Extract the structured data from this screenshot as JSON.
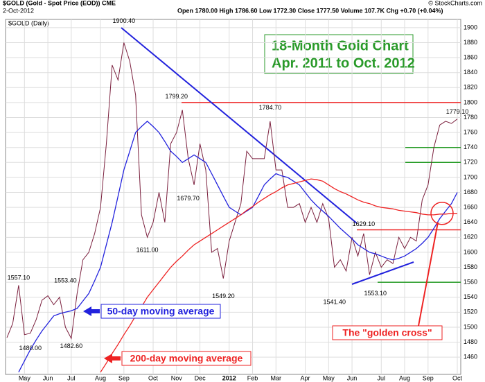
{
  "chart_data": {
    "type": "line",
    "symbol": "$GOLD (Gold - Spot Price (EOD)) CME",
    "date": "2-Oct-2012",
    "quote": "Open 1780.00  High 1786.60  Low 1772.30  Close 1777.50  Volume 107.7K  Chg +0.70 (+0.04%)",
    "credit": "© StockCharts.com",
    "panel_label": "$GOLD (Daily)",
    "title": "18-Month Gold Chart",
    "subtitle": "Apr. 2011 to Oct. 2012",
    "categories": [
      null,
      null,
      null,
      "May",
      null,
      null,
      null,
      "Jun",
      null,
      null,
      null,
      "Jul",
      null,
      null,
      null,
      null,
      "Aug",
      null,
      null,
      null,
      "Sep",
      null,
      null,
      null,
      null,
      "Oct",
      null,
      null,
      null,
      "Nov",
      null,
      null,
      null,
      "Dec",
      null,
      null,
      null,
      null,
      "2012",
      null,
      null,
      null,
      "Feb",
      null,
      null,
      null,
      "Mar",
      null,
      null,
      null,
      null,
      "Apr",
      null,
      null,
      null,
      "May",
      null,
      null,
      null,
      "Jun",
      null,
      null,
      null,
      null,
      "Jul",
      null,
      null,
      null,
      "Aug",
      null,
      null,
      null,
      "Sep",
      null,
      null,
      null,
      null,
      "Oct"
    ],
    "series": [
      {
        "name": "$GOLD",
        "color": "#7a1f3d",
        "values": [
          1486,
          1505,
          1556,
          1490,
          1492,
          1510,
          1536,
          1542,
          1530,
          1540,
          1500,
          1485,
          1545,
          1590,
          1600,
          1625,
          1660,
          1745,
          1850,
          1830,
          1880,
          1855,
          1810,
          1650,
          1620,
          1640,
          1680,
          1640,
          1745,
          1760,
          1790,
          1725,
          1690,
          1745,
          1710,
          1600,
          1605,
          1565,
          1615,
          1640,
          1665,
          1735,
          1725,
          1725,
          1725,
          1775,
          1710,
          1710,
          1660,
          1660,
          1665,
          1640,
          1660,
          1640,
          1665,
          1645,
          1580,
          1590,
          1575,
          1620,
          1595,
          1625,
          1570,
          1600,
          1580,
          1590,
          1585,
          1620,
          1605,
          1620,
          1615,
          1670,
          1690,
          1740,
          1770,
          1775,
          1772,
          1778
        ]
      },
      {
        "name": "50-day moving average",
        "color": "#2222dd",
        "values": [
          null,
          null,
          1440,
          1455,
          1470,
          1483,
          1495,
          1505,
          1515,
          1518,
          1520,
          1522,
          1525,
          1535,
          1545,
          1562,
          1580,
          1610,
          1640,
          1675,
          1710,
          1735,
          1760,
          1768,
          1775,
          1768,
          1760,
          1748,
          1735,
          1728,
          1720,
          1725,
          1730,
          1725,
          1720,
          1705,
          1690,
          1675,
          1660,
          1655,
          1650,
          1655,
          1660,
          1675,
          1690,
          1698,
          1705,
          1702,
          1700,
          1695,
          1690,
          1680,
          1670,
          1662,
          1655,
          1648,
          1640,
          1632,
          1625,
          1618,
          1610,
          1605,
          1600,
          1598,
          1595,
          1592,
          1590,
          1592,
          1595,
          1600,
          1605,
          1612,
          1620,
          1632,
          1645,
          1655,
          1665,
          1680
        ]
      },
      {
        "name": "200-day moving average",
        "color": "#ee2222",
        "values": [
          null,
          null,
          null,
          null,
          null,
          null,
          null,
          null,
          null,
          null,
          null,
          null,
          null,
          null,
          null,
          null,
          1440,
          1452,
          1465,
          1477,
          1490,
          1502,
          1515,
          1527,
          1540,
          1550,
          1560,
          1570,
          1580,
          1588,
          1595,
          1603,
          1610,
          1615,
          1620,
          1625,
          1630,
          1635,
          1640,
          1645,
          1650,
          1656,
          1661,
          1667,
          1672,
          1677,
          1681,
          1686,
          1690,
          1692,
          1694,
          1696,
          1698,
          1697,
          1695,
          1690,
          1685,
          1681,
          1678,
          1674,
          1670,
          1667,
          1665,
          1662,
          1660,
          1659,
          1658,
          1656,
          1655,
          1654,
          1653,
          1651,
          1650,
          1650,
          1651,
          1651,
          1652,
          1652
        ]
      }
    ],
    "annotations": [
      {
        "value": 1900.4,
        "label": "1900.40"
      },
      {
        "value": 1799.2,
        "label": "1799.20"
      },
      {
        "value": 1784.7,
        "label": "1784.70"
      },
      {
        "value": 1779.1,
        "label": "1779.10"
      },
      {
        "value": 1679.7,
        "label": "1679.70"
      },
      {
        "value": 1611,
        "label": "1611.00"
      },
      {
        "value": 1549.2,
        "label": "1549.20"
      },
      {
        "value": 1541.4,
        "label": "1541.40"
      },
      {
        "value": 1553.1,
        "label": "1553.10"
      },
      {
        "value": 1629.1,
        "label": "1629.10"
      },
      {
        "value": 1557.1,
        "label": "1557.10"
      },
      {
        "value": 1553.4,
        "label": "1553.40"
      },
      {
        "value": 1480,
        "label": "1480.00"
      },
      {
        "value": 1482.6,
        "label": "1482.60"
      }
    ],
    "levels": [
      {
        "value": 1800,
        "color": "#ee2222"
      },
      {
        "value": 1630,
        "color": "#ee2222"
      },
      {
        "value": 1740,
        "color": "#229922"
      },
      {
        "value": 1720,
        "color": "#229922"
      },
      {
        "value": 1560,
        "color": "#229922"
      }
    ],
    "callout": "The \"golden cross\"",
    "ylim": [
      1437,
      1911
    ],
    "yticks": [
      1460,
      1480,
      1500,
      1520,
      1540,
      1560,
      1580,
      1600,
      1620,
      1640,
      1660,
      1680,
      1700,
      1720,
      1740,
      1760,
      1780,
      1800,
      1820,
      1840,
      1860,
      1880,
      1900
    ],
    "grid": true
  }
}
